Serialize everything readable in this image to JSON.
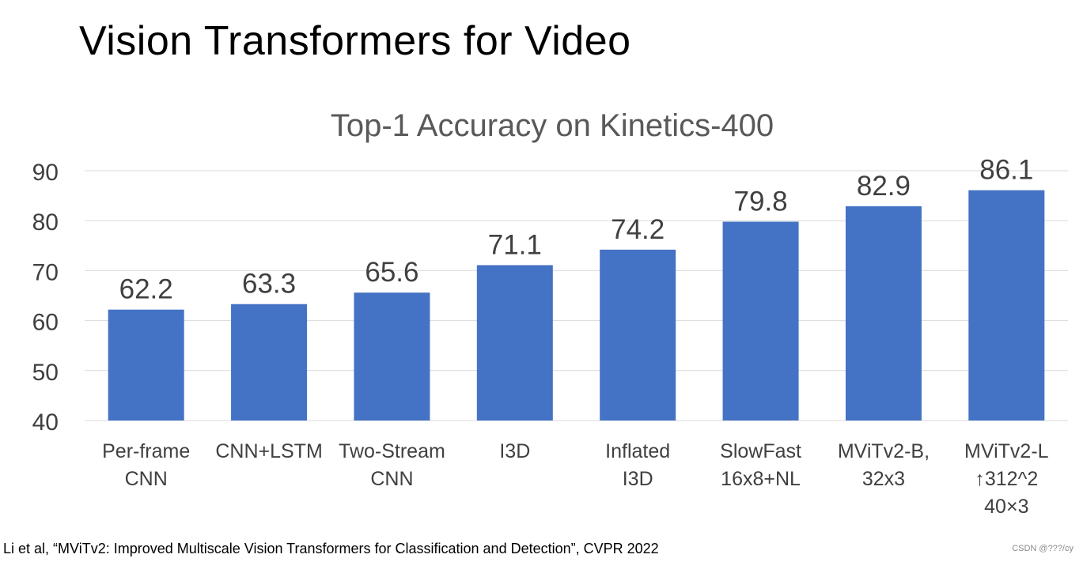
{
  "slide": {
    "title": "Vision Transformers for Video",
    "citation": "Li et al, “MViTv2: Improved Multiscale Vision Transformers for Classification and Detection”, CVPR 2022",
    "watermark": "CSDN @???/cy"
  },
  "colors": {
    "bar": "#4472C4",
    "gridline": "#D9D9D9",
    "text": "#404040",
    "title_text": "#595959"
  },
  "chart_data": {
    "type": "bar",
    "title": "Top-1 Accuracy on Kinetics-400",
    "xlabel": "",
    "ylabel": "",
    "ylim": [
      40,
      90
    ],
    "yticks": [
      40,
      50,
      60,
      70,
      80,
      90
    ],
    "grid": true,
    "legend": "none",
    "categories": [
      [
        "Per-frame",
        "CNN"
      ],
      [
        "CNN+LSTM"
      ],
      [
        "Two-Stream",
        "CNN"
      ],
      [
        "I3D"
      ],
      [
        "Inflated",
        "I3D"
      ],
      [
        "SlowFast",
        "16x8+NL"
      ],
      [
        "MViTv2-B,",
        "32x3"
      ],
      [
        "MViTv2-L",
        "↑312^2",
        "40×3"
      ]
    ],
    "values": [
      62.2,
      63.3,
      65.6,
      71.1,
      74.2,
      79.8,
      82.9,
      86.1
    ],
    "value_labels": [
      "62.2",
      "63.3",
      "65.6",
      "71.1",
      "74.2",
      "79.8",
      "82.9",
      "86.1"
    ]
  }
}
